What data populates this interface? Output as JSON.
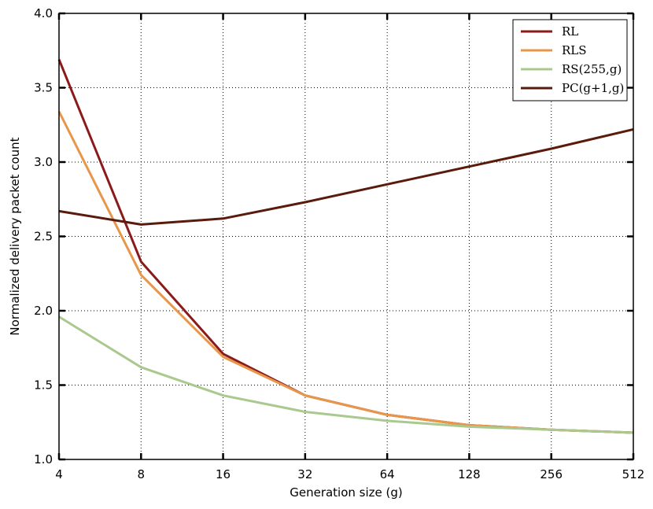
{
  "chart_data": {
    "type": "line",
    "xlabel": "Generation size (g)",
    "ylabel": "Normalized delivery packet count",
    "x_scale": "log2",
    "x": [
      4,
      8,
      16,
      32,
      64,
      128,
      256,
      512
    ],
    "x_tick_labels": [
      "4",
      "8",
      "16",
      "32",
      "64",
      "128",
      "256",
      "512"
    ],
    "ylim": [
      1.0,
      4.0
    ],
    "y_ticks": [
      1.0,
      1.5,
      2.0,
      2.5,
      3.0,
      3.5,
      4.0
    ],
    "y_tick_labels": [
      "1.0",
      "1.5",
      "2.0",
      "2.5",
      "3.0",
      "3.5",
      "4.0"
    ],
    "grid": true,
    "legend_position": "top-right",
    "series": [
      {
        "name": "RL",
        "color": "#8b1a1a",
        "values": [
          3.69,
          2.33,
          1.71,
          1.43,
          1.3,
          1.23,
          1.2,
          1.18
        ]
      },
      {
        "name": "RLS",
        "color": "#e8974a",
        "values": [
          3.34,
          2.24,
          1.69,
          1.43,
          1.3,
          1.23,
          1.2,
          1.18
        ]
      },
      {
        "name": "RS(255,g)",
        "color": "#a9c98f",
        "values": [
          1.96,
          1.62,
          1.43,
          1.32,
          1.26,
          1.22,
          1.2,
          1.18
        ]
      },
      {
        "name": "PC(g+1,g)",
        "color": "#5a1a0c",
        "values": [
          2.67,
          2.58,
          2.62,
          2.73,
          2.85,
          2.97,
          3.09,
          3.22
        ]
      }
    ]
  }
}
